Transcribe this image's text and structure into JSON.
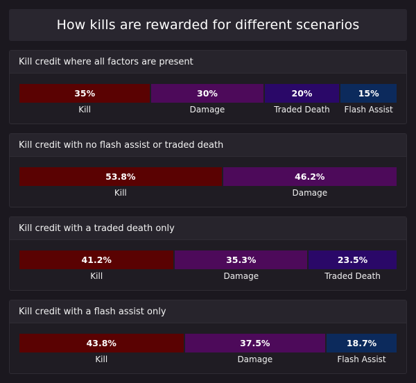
{
  "title": "How kills are rewarded for different scenarios",
  "colors": {
    "Kill": "#5a0202",
    "Damage": "#4d0a5a",
    "Traded Death": "#2a0868",
    "Flash Assist": "#0c2a5c"
  },
  "chart_data": [
    {
      "type": "bar",
      "title": "Kill credit where all factors are present",
      "categories": [
        "Kill",
        "Damage",
        "Traded Death",
        "Flash Assist"
      ],
      "values": [
        35,
        30,
        20,
        15
      ],
      "value_labels": [
        "35%",
        "30%",
        "20%",
        "15%"
      ]
    },
    {
      "type": "bar",
      "title": "Kill credit with no flash assist or traded death",
      "categories": [
        "Kill",
        "Damage"
      ],
      "values": [
        53.8,
        46.2
      ],
      "value_labels": [
        "53.8%",
        "46.2%"
      ]
    },
    {
      "type": "bar",
      "title": "Kill credit with a traded death only",
      "categories": [
        "Kill",
        "Damage",
        "Traded Death"
      ],
      "values": [
        41.2,
        35.3,
        23.5
      ],
      "value_labels": [
        "41.2%",
        "35.3%",
        "23.5%"
      ]
    },
    {
      "type": "bar",
      "title": "Kill credit with a flash assist only",
      "categories": [
        "Kill",
        "Damage",
        "Flash Assist"
      ],
      "values": [
        43.8,
        37.5,
        18.7
      ],
      "value_labels": [
        "43.8%",
        "37.5%",
        "18.7%"
      ]
    }
  ]
}
